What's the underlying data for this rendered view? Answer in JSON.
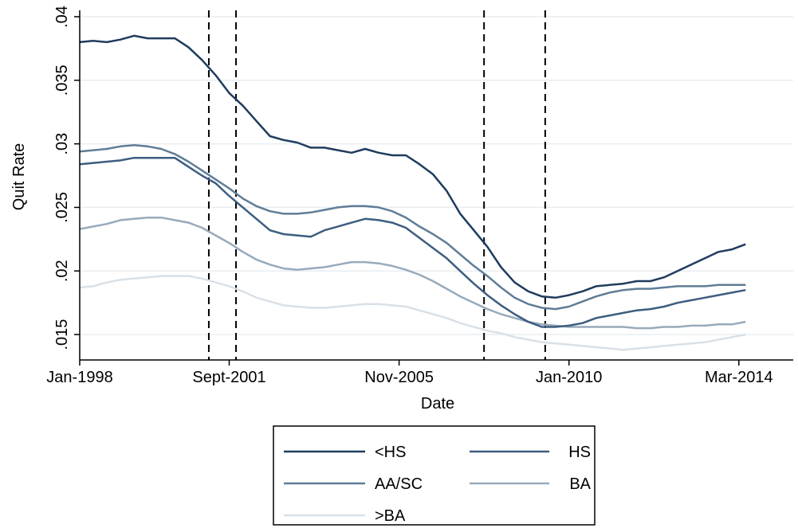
{
  "chart_data": {
    "type": "line",
    "xlabel": "Date",
    "ylabel": "Quit Rate",
    "xlim": [
      "1998-01",
      "2015-07"
    ],
    "ylim": [
      0.013,
      0.0405
    ],
    "x_ticks": [
      {
        "date": "1998-01",
        "label": "Jan-1998"
      },
      {
        "date": "2001-09",
        "label": "Sept-2001"
      },
      {
        "date": "2005-11",
        "label": "Nov-2005"
      },
      {
        "date": "2010-01",
        "label": "Jan-2010"
      },
      {
        "date": "2014-03",
        "label": "Mar-2014"
      }
    ],
    "y_ticks": [
      {
        "value": 0.015,
        "label": ".015"
      },
      {
        "value": 0.02,
        "label": ".02"
      },
      {
        "value": 0.025,
        "label": ".025"
      },
      {
        "value": 0.03,
        "label": ".03"
      },
      {
        "value": 0.035,
        "label": ".035"
      },
      {
        "value": 0.04,
        "label": ".04"
      }
    ],
    "grid": "horizontal",
    "vlines": [
      "2001-03",
      "2001-11",
      "2007-12",
      "2009-06"
    ],
    "legend_position": "bottom",
    "series": [
      {
        "name": "<HS",
        "color": "#1f3c5e",
        "points": [
          [
            "1998-01",
            0.038
          ],
          [
            "1998-05",
            0.0381
          ],
          [
            "1998-09",
            0.038
          ],
          [
            "1999-01",
            0.0382
          ],
          [
            "1999-05",
            0.0385
          ],
          [
            "1999-09",
            0.0383
          ],
          [
            "2000-01",
            0.0383
          ],
          [
            "2000-05",
            0.0383
          ],
          [
            "2000-09",
            0.0376
          ],
          [
            "2001-01",
            0.0366
          ],
          [
            "2001-05",
            0.0354
          ],
          [
            "2001-09",
            0.034
          ],
          [
            "2002-01",
            0.033
          ],
          [
            "2002-05",
            0.0318
          ],
          [
            "2002-09",
            0.0306
          ],
          [
            "2003-01",
            0.0303
          ],
          [
            "2003-05",
            0.0301
          ],
          [
            "2003-09",
            0.0297
          ],
          [
            "2004-01",
            0.0297
          ],
          [
            "2004-05",
            0.0295
          ],
          [
            "2004-09",
            0.0293
          ],
          [
            "2005-01",
            0.0296
          ],
          [
            "2005-05",
            0.0293
          ],
          [
            "2005-09",
            0.0291
          ],
          [
            "2006-01",
            0.0291
          ],
          [
            "2006-05",
            0.0284
          ],
          [
            "2006-09",
            0.0276
          ],
          [
            "2007-01",
            0.0263
          ],
          [
            "2007-05",
            0.0245
          ],
          [
            "2007-09",
            0.0232
          ],
          [
            "2008-01",
            0.0219
          ],
          [
            "2008-05",
            0.0203
          ],
          [
            "2008-09",
            0.0191
          ],
          [
            "2009-01",
            0.0184
          ],
          [
            "2009-05",
            0.018
          ],
          [
            "2009-09",
            0.0179
          ],
          [
            "2010-01",
            0.0181
          ],
          [
            "2010-05",
            0.0184
          ],
          [
            "2010-09",
            0.0188
          ],
          [
            "2011-01",
            0.0189
          ],
          [
            "2011-05",
            0.019
          ],
          [
            "2011-09",
            0.0192
          ],
          [
            "2012-01",
            0.0192
          ],
          [
            "2012-05",
            0.0195
          ],
          [
            "2012-09",
            0.02
          ],
          [
            "2013-01",
            0.0205
          ],
          [
            "2013-05",
            0.021
          ],
          [
            "2013-09",
            0.0215
          ],
          [
            "2014-01",
            0.0217
          ],
          [
            "2014-05",
            0.0221
          ]
        ]
      },
      {
        "name": "HS",
        "color": "#3d5d80",
        "points": [
          [
            "1998-01",
            0.0284
          ],
          [
            "1998-05",
            0.0285
          ],
          [
            "1998-09",
            0.0286
          ],
          [
            "1999-01",
            0.0287
          ],
          [
            "1999-05",
            0.0289
          ],
          [
            "1999-09",
            0.0289
          ],
          [
            "2000-01",
            0.0289
          ],
          [
            "2000-05",
            0.0289
          ],
          [
            "2000-09",
            0.0282
          ],
          [
            "2001-01",
            0.0275
          ],
          [
            "2001-05",
            0.0269
          ],
          [
            "2001-09",
            0.0259
          ],
          [
            "2002-01",
            0.025
          ],
          [
            "2002-05",
            0.0241
          ],
          [
            "2002-09",
            0.0232
          ],
          [
            "2003-01",
            0.0229
          ],
          [
            "2003-05",
            0.0228
          ],
          [
            "2003-09",
            0.0227
          ],
          [
            "2004-01",
            0.0232
          ],
          [
            "2004-05",
            0.0235
          ],
          [
            "2004-09",
            0.0238
          ],
          [
            "2005-01",
            0.0241
          ],
          [
            "2005-05",
            0.024
          ],
          [
            "2005-09",
            0.0238
          ],
          [
            "2006-01",
            0.0234
          ],
          [
            "2006-05",
            0.0226
          ],
          [
            "2006-09",
            0.0218
          ],
          [
            "2007-01",
            0.021
          ],
          [
            "2007-05",
            0.02
          ],
          [
            "2007-09",
            0.019
          ],
          [
            "2008-01",
            0.0181
          ],
          [
            "2008-05",
            0.0173
          ],
          [
            "2008-09",
            0.0166
          ],
          [
            "2009-01",
            0.016
          ],
          [
            "2009-05",
            0.0156
          ],
          [
            "2009-09",
            0.0156
          ],
          [
            "2010-01",
            0.0157
          ],
          [
            "2010-05",
            0.0159
          ],
          [
            "2010-09",
            0.0163
          ],
          [
            "2011-01",
            0.0165
          ],
          [
            "2011-05",
            0.0167
          ],
          [
            "2011-09",
            0.0169
          ],
          [
            "2012-01",
            0.017
          ],
          [
            "2012-05",
            0.0172
          ],
          [
            "2012-09",
            0.0175
          ],
          [
            "2013-01",
            0.0177
          ],
          [
            "2013-05",
            0.0179
          ],
          [
            "2013-09",
            0.0181
          ],
          [
            "2014-01",
            0.0183
          ],
          [
            "2014-05",
            0.0185
          ]
        ]
      },
      {
        "name": "AA/SC",
        "color": "#5f7d97",
        "points": [
          [
            "1998-01",
            0.0294
          ],
          [
            "1998-05",
            0.0295
          ],
          [
            "1998-09",
            0.0296
          ],
          [
            "1999-01",
            0.0298
          ],
          [
            "1999-05",
            0.0299
          ],
          [
            "1999-09",
            0.0298
          ],
          [
            "2000-01",
            0.0296
          ],
          [
            "2000-05",
            0.0292
          ],
          [
            "2000-09",
            0.0286
          ],
          [
            "2001-01",
            0.0279
          ],
          [
            "2001-05",
            0.0272
          ],
          [
            "2001-09",
            0.0265
          ],
          [
            "2002-01",
            0.0257
          ],
          [
            "2002-05",
            0.0251
          ],
          [
            "2002-09",
            0.0247
          ],
          [
            "2003-01",
            0.0245
          ],
          [
            "2003-05",
            0.0245
          ],
          [
            "2003-09",
            0.0246
          ],
          [
            "2004-01",
            0.0248
          ],
          [
            "2004-05",
            0.025
          ],
          [
            "2004-09",
            0.0251
          ],
          [
            "2005-01",
            0.0251
          ],
          [
            "2005-05",
            0.025
          ],
          [
            "2005-09",
            0.0247
          ],
          [
            "2006-01",
            0.0242
          ],
          [
            "2006-05",
            0.0235
          ],
          [
            "2006-09",
            0.0229
          ],
          [
            "2007-01",
            0.0222
          ],
          [
            "2007-05",
            0.0213
          ],
          [
            "2007-09",
            0.0204
          ],
          [
            "2008-01",
            0.0196
          ],
          [
            "2008-05",
            0.0187
          ],
          [
            "2008-09",
            0.0179
          ],
          [
            "2009-01",
            0.0174
          ],
          [
            "2009-05",
            0.0171
          ],
          [
            "2009-09",
            0.017
          ],
          [
            "2010-01",
            0.0172
          ],
          [
            "2010-05",
            0.0176
          ],
          [
            "2010-09",
            0.018
          ],
          [
            "2011-01",
            0.0183
          ],
          [
            "2011-05",
            0.0185
          ],
          [
            "2011-09",
            0.0186
          ],
          [
            "2012-01",
            0.0186
          ],
          [
            "2012-05",
            0.0187
          ],
          [
            "2012-09",
            0.0188
          ],
          [
            "2013-01",
            0.0188
          ],
          [
            "2013-05",
            0.0188
          ],
          [
            "2013-09",
            0.0189
          ],
          [
            "2014-01",
            0.0189
          ],
          [
            "2014-05",
            0.0189
          ]
        ]
      },
      {
        "name": "BA",
        "color": "#98aabb",
        "points": [
          [
            "1998-01",
            0.0233
          ],
          [
            "1998-05",
            0.0235
          ],
          [
            "1998-09",
            0.0237
          ],
          [
            "1999-01",
            0.024
          ],
          [
            "1999-05",
            0.0241
          ],
          [
            "1999-09",
            0.0242
          ],
          [
            "2000-01",
            0.0242
          ],
          [
            "2000-05",
            0.024
          ],
          [
            "2000-09",
            0.0238
          ],
          [
            "2001-01",
            0.0234
          ],
          [
            "2001-05",
            0.0228
          ],
          [
            "2001-09",
            0.0222
          ],
          [
            "2002-01",
            0.0215
          ],
          [
            "2002-05",
            0.0209
          ],
          [
            "2002-09",
            0.0205
          ],
          [
            "2003-01",
            0.0202
          ],
          [
            "2003-05",
            0.0201
          ],
          [
            "2003-09",
            0.0202
          ],
          [
            "2004-01",
            0.0203
          ],
          [
            "2004-05",
            0.0205
          ],
          [
            "2004-09",
            0.0207
          ],
          [
            "2005-01",
            0.0207
          ],
          [
            "2005-05",
            0.0206
          ],
          [
            "2005-09",
            0.0204
          ],
          [
            "2006-01",
            0.0201
          ],
          [
            "2006-05",
            0.0197
          ],
          [
            "2006-09",
            0.0192
          ],
          [
            "2007-01",
            0.0186
          ],
          [
            "2007-05",
            0.018
          ],
          [
            "2007-09",
            0.0175
          ],
          [
            "2008-01",
            0.017
          ],
          [
            "2008-05",
            0.0166
          ],
          [
            "2008-09",
            0.0163
          ],
          [
            "2009-01",
            0.016
          ],
          [
            "2009-05",
            0.0158
          ],
          [
            "2009-09",
            0.0157
          ],
          [
            "2010-01",
            0.0156
          ],
          [
            "2010-05",
            0.0156
          ],
          [
            "2010-09",
            0.0156
          ],
          [
            "2011-01",
            0.0156
          ],
          [
            "2011-05",
            0.0156
          ],
          [
            "2011-09",
            0.0155
          ],
          [
            "2012-01",
            0.0155
          ],
          [
            "2012-05",
            0.0156
          ],
          [
            "2012-09",
            0.0156
          ],
          [
            "2013-01",
            0.0157
          ],
          [
            "2013-05",
            0.0157
          ],
          [
            "2013-09",
            0.0158
          ],
          [
            "2014-01",
            0.0158
          ],
          [
            "2014-05",
            0.016
          ]
        ]
      },
      {
        "name": ">BA",
        "color": "#d9e1e8",
        "points": [
          [
            "1998-01",
            0.0187
          ],
          [
            "1998-05",
            0.0188
          ],
          [
            "1998-09",
            0.0191
          ],
          [
            "1999-01",
            0.0193
          ],
          [
            "1999-05",
            0.0194
          ],
          [
            "1999-09",
            0.0195
          ],
          [
            "2000-01",
            0.0196
          ],
          [
            "2000-05",
            0.0196
          ],
          [
            "2000-09",
            0.0196
          ],
          [
            "2001-01",
            0.0194
          ],
          [
            "2001-05",
            0.0191
          ],
          [
            "2001-09",
            0.0188
          ],
          [
            "2002-01",
            0.0184
          ],
          [
            "2002-05",
            0.0179
          ],
          [
            "2002-09",
            0.0176
          ],
          [
            "2003-01",
            0.0173
          ],
          [
            "2003-05",
            0.0172
          ],
          [
            "2003-09",
            0.0171
          ],
          [
            "2004-01",
            0.0171
          ],
          [
            "2004-05",
            0.0172
          ],
          [
            "2004-09",
            0.0173
          ],
          [
            "2005-01",
            0.0174
          ],
          [
            "2005-05",
            0.0174
          ],
          [
            "2005-09",
            0.0173
          ],
          [
            "2006-01",
            0.0172
          ],
          [
            "2006-05",
            0.0169
          ],
          [
            "2006-09",
            0.0166
          ],
          [
            "2007-01",
            0.0163
          ],
          [
            "2007-05",
            0.0159
          ],
          [
            "2007-09",
            0.0156
          ],
          [
            "2008-01",
            0.0153
          ],
          [
            "2008-05",
            0.0151
          ],
          [
            "2008-09",
            0.0148
          ],
          [
            "2009-01",
            0.0146
          ],
          [
            "2009-05",
            0.0144
          ],
          [
            "2009-09",
            0.0143
          ],
          [
            "2010-01",
            0.0142
          ],
          [
            "2010-05",
            0.0141
          ],
          [
            "2010-09",
            0.014
          ],
          [
            "2011-01",
            0.0139
          ],
          [
            "2011-05",
            0.0138
          ],
          [
            "2011-09",
            0.0139
          ],
          [
            "2012-01",
            0.014
          ],
          [
            "2012-05",
            0.0141
          ],
          [
            "2012-09",
            0.0142
          ],
          [
            "2013-01",
            0.0143
          ],
          [
            "2013-05",
            0.0144
          ],
          [
            "2013-09",
            0.0146
          ],
          [
            "2014-01",
            0.0148
          ],
          [
            "2014-05",
            0.015
          ]
        ]
      }
    ]
  }
}
